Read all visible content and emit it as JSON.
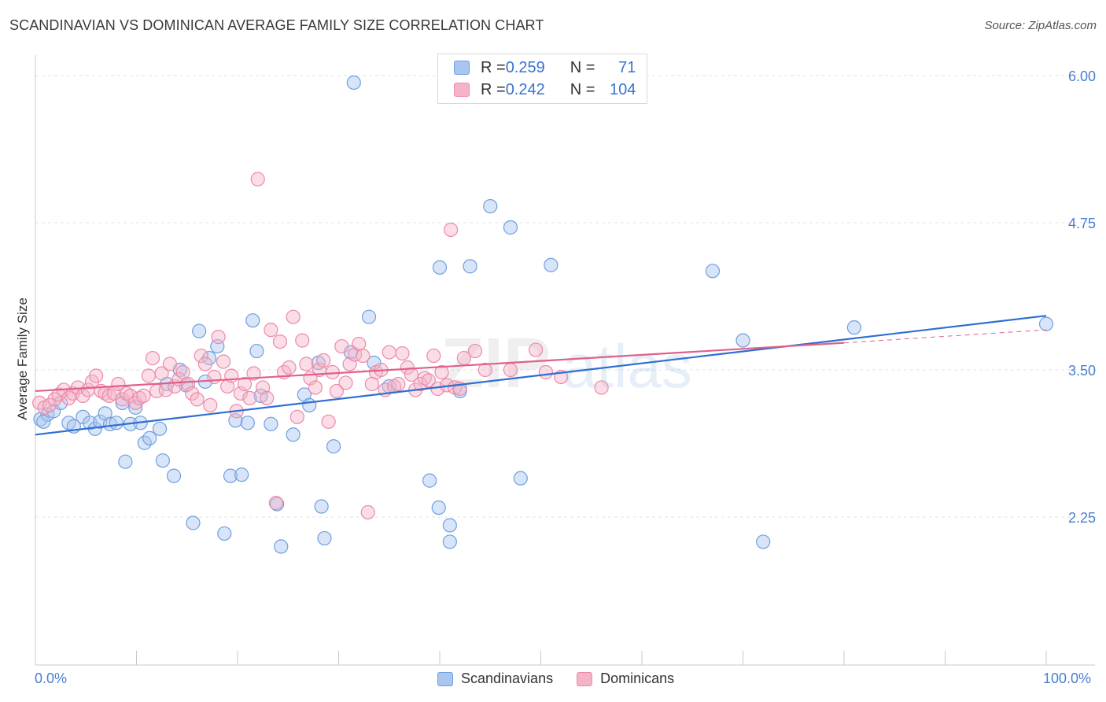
{
  "header": {
    "title": "SCANDINAVIAN VS DOMINICAN AVERAGE FAMILY SIZE CORRELATION CHART",
    "source": "Source: ZipAtlas.com"
  },
  "watermark": {
    "zip": "ZIP",
    "atlas": "atlas"
  },
  "legend": {
    "rows": [
      {
        "r_label": "R = ",
        "r_value": "0.259",
        "n_label": "N = ",
        "n_value": "71",
        "color": "#a8c6f0"
      },
      {
        "r_label": "R = ",
        "r_value": "0.242",
        "n_label": "N = ",
        "n_value": "104",
        "color": "#f5b3c8"
      }
    ]
  },
  "bottom_legend": {
    "items": [
      {
        "label": "Scandinavians",
        "color": "#a8c6f0"
      },
      {
        "label": "Dominicans",
        "color": "#f5b3c8"
      }
    ]
  },
  "chart_data": {
    "type": "scatter",
    "title": "SCANDINAVIAN VS DOMINICAN AVERAGE FAMILY SIZE CORRELATION CHART",
    "xlabel": "",
    "ylabel": "Average Family Size",
    "xlim": [
      0,
      100
    ],
    "ylim": [
      1.0,
      6.1
    ],
    "x_tick_labels": [
      "0.0%",
      "100.0%"
    ],
    "y_ticks": [
      2.25,
      3.5,
      4.75,
      6.0
    ],
    "y_tick_labels": [
      "2.25",
      "3.50",
      "4.75",
      "6.00"
    ],
    "grid": true,
    "legend_placement": "top-center",
    "series": [
      {
        "name": "Scandinavians",
        "color": "#6f9fe0",
        "fill": "#a8c6f0",
        "line_color": "#2f6fd0",
        "trend": {
          "x": [
            0,
            100
          ],
          "y": [
            2.95,
            3.96
          ]
        },
        "points": [
          [
            0.5,
            3.08
          ],
          [
            1.2,
            3.12
          ],
          [
            1.8,
            3.15
          ],
          [
            2.5,
            3.22
          ],
          [
            3.3,
            3.05
          ],
          [
            3.8,
            3.02
          ],
          [
            4.7,
            3.1
          ],
          [
            5.4,
            3.05
          ],
          [
            5.9,
            3.0
          ],
          [
            6.4,
            3.06
          ],
          [
            6.9,
            3.13
          ],
          [
            7.4,
            3.04
          ],
          [
            8.0,
            3.05
          ],
          [
            8.6,
            3.22
          ],
          [
            8.9,
            2.72
          ],
          [
            9.4,
            3.04
          ],
          [
            9.9,
            3.18
          ],
          [
            10.4,
            3.05
          ],
          [
            10.8,
            2.88
          ],
          [
            11.3,
            2.92
          ],
          [
            12.3,
            3.0
          ],
          [
            12.6,
            2.73
          ],
          [
            13.0,
            3.38
          ],
          [
            13.7,
            2.6
          ],
          [
            14.3,
            3.5
          ],
          [
            14.9,
            3.37
          ],
          [
            15.6,
            2.2
          ],
          [
            16.2,
            3.83
          ],
          [
            16.8,
            3.4
          ],
          [
            17.2,
            3.6
          ],
          [
            18.0,
            3.7
          ],
          [
            18.7,
            2.11
          ],
          [
            19.3,
            2.6
          ],
          [
            19.8,
            3.07
          ],
          [
            20.4,
            2.61
          ],
          [
            21.0,
            3.05
          ],
          [
            21.5,
            3.92
          ],
          [
            21.9,
            3.66
          ],
          [
            22.3,
            3.28
          ],
          [
            23.3,
            3.04
          ],
          [
            23.9,
            2.36
          ],
          [
            24.3,
            2.0
          ],
          [
            25.5,
            2.95
          ],
          [
            26.6,
            3.29
          ],
          [
            27.1,
            3.2
          ],
          [
            28.0,
            3.56
          ],
          [
            28.3,
            2.34
          ],
          [
            28.6,
            2.07
          ],
          [
            29.5,
            2.85
          ],
          [
            31.2,
            3.65
          ],
          [
            31.5,
            5.94
          ],
          [
            33.0,
            3.95
          ],
          [
            33.5,
            3.56
          ],
          [
            35.0,
            3.36
          ],
          [
            39.0,
            2.56
          ],
          [
            39.9,
            2.33
          ],
          [
            40.0,
            4.37
          ],
          [
            41.0,
            2.18
          ],
          [
            41.0,
            2.04
          ],
          [
            42.0,
            3.32
          ],
          [
            43.0,
            4.38
          ],
          [
            45.0,
            4.89
          ],
          [
            47.0,
            4.71
          ],
          [
            48.0,
            2.58
          ],
          [
            51.0,
            4.39
          ],
          [
            67.0,
            4.34
          ],
          [
            70.0,
            3.75
          ],
          [
            72.0,
            2.04
          ],
          [
            81.0,
            3.86
          ],
          [
            100.0,
            3.89
          ],
          [
            0.8,
            3.06
          ]
        ]
      },
      {
        "name": "Dominicans",
        "color": "#ec8aaa",
        "fill": "#f5b3c8",
        "line_color": "#e0608a",
        "trend": {
          "x": [
            0,
            80
          ],
          "y": [
            3.32,
            3.73
          ]
        },
        "trend_dashed": {
          "x": [
            80,
            100
          ],
          "y": [
            3.73,
            3.84
          ]
        },
        "points": [
          [
            0.4,
            3.22
          ],
          [
            0.9,
            3.18
          ],
          [
            1.4,
            3.2
          ],
          [
            1.9,
            3.25
          ],
          [
            2.3,
            3.29
          ],
          [
            2.8,
            3.33
          ],
          [
            3.3,
            3.26
          ],
          [
            3.7,
            3.3
          ],
          [
            4.2,
            3.35
          ],
          [
            4.7,
            3.28
          ],
          [
            5.2,
            3.33
          ],
          [
            5.6,
            3.4
          ],
          [
            6.0,
            3.45
          ],
          [
            6.5,
            3.32
          ],
          [
            6.9,
            3.3
          ],
          [
            7.3,
            3.28
          ],
          [
            7.8,
            3.3
          ],
          [
            8.2,
            3.38
          ],
          [
            8.6,
            3.25
          ],
          [
            9.0,
            3.3
          ],
          [
            9.4,
            3.28
          ],
          [
            9.9,
            3.22
          ],
          [
            10.3,
            3.26
          ],
          [
            10.7,
            3.28
          ],
          [
            11.2,
            3.45
          ],
          [
            11.6,
            3.6
          ],
          [
            12.0,
            3.32
          ],
          [
            12.5,
            3.47
          ],
          [
            12.9,
            3.33
          ],
          [
            13.3,
            3.55
          ],
          [
            13.8,
            3.36
          ],
          [
            14.2,
            3.42
          ],
          [
            14.6,
            3.48
          ],
          [
            15.1,
            3.38
          ],
          [
            15.5,
            3.3
          ],
          [
            16.0,
            3.25
          ],
          [
            16.4,
            3.62
          ],
          [
            16.8,
            3.55
          ],
          [
            17.3,
            3.2
          ],
          [
            17.7,
            3.44
          ],
          [
            18.1,
            3.78
          ],
          [
            18.6,
            3.57
          ],
          [
            19.0,
            3.36
          ],
          [
            19.4,
            3.45
          ],
          [
            19.9,
            3.15
          ],
          [
            20.3,
            3.3
          ],
          [
            20.7,
            3.38
          ],
          [
            21.2,
            3.26
          ],
          [
            21.6,
            3.47
          ],
          [
            22.0,
            5.12
          ],
          [
            22.5,
            3.35
          ],
          [
            22.9,
            3.26
          ],
          [
            23.3,
            3.84
          ],
          [
            23.8,
            2.37
          ],
          [
            24.2,
            3.74
          ],
          [
            24.6,
            3.48
          ],
          [
            25.1,
            3.52
          ],
          [
            25.5,
            3.95
          ],
          [
            25.9,
            3.1
          ],
          [
            26.4,
            3.75
          ],
          [
            26.8,
            3.55
          ],
          [
            27.2,
            3.43
          ],
          [
            27.7,
            3.35
          ],
          [
            28.1,
            3.5
          ],
          [
            28.5,
            3.58
          ],
          [
            29.0,
            3.06
          ],
          [
            29.4,
            3.48
          ],
          [
            29.8,
            3.32
          ],
          [
            30.3,
            3.7
          ],
          [
            30.7,
            3.39
          ],
          [
            31.1,
            3.55
          ],
          [
            31.6,
            3.63
          ],
          [
            32.0,
            3.72
          ],
          [
            32.4,
            3.62
          ],
          [
            32.9,
            2.29
          ],
          [
            33.3,
            3.38
          ],
          [
            33.7,
            3.48
          ],
          [
            34.2,
            3.5
          ],
          [
            34.6,
            3.33
          ],
          [
            35.0,
            3.65
          ],
          [
            35.5,
            3.36
          ],
          [
            35.9,
            3.38
          ],
          [
            36.3,
            3.64
          ],
          [
            36.8,
            3.52
          ],
          [
            37.2,
            3.46
          ],
          [
            37.6,
            3.33
          ],
          [
            38.1,
            3.38
          ],
          [
            38.5,
            3.43
          ],
          [
            38.9,
            3.41
          ],
          [
            39.4,
            3.62
          ],
          [
            39.8,
            3.34
          ],
          [
            40.2,
            3.48
          ],
          [
            40.7,
            3.37
          ],
          [
            41.1,
            4.69
          ],
          [
            41.5,
            3.35
          ],
          [
            42.0,
            3.34
          ],
          [
            42.4,
            3.6
          ],
          [
            43.5,
            3.66
          ],
          [
            44.5,
            3.5
          ],
          [
            47.0,
            3.5
          ],
          [
            49.5,
            3.67
          ],
          [
            50.5,
            3.48
          ],
          [
            52.0,
            3.44
          ],
          [
            56.0,
            3.35
          ]
        ]
      }
    ]
  }
}
